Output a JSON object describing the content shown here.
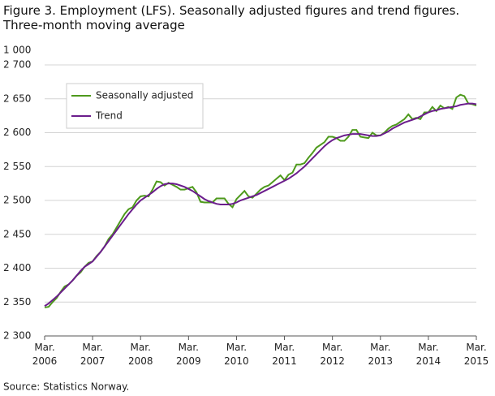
{
  "chart_data": {
    "type": "line",
    "title": "Figure 3. Employment (LFS). Seasonally adjusted figures and trend figures.",
    "subtitle": "Three-month moving average",
    "unit_label": "1 000",
    "source": "Source: Statistics Norway.",
    "categories": [
      "Mar. 2006",
      null,
      null,
      null,
      null,
      null,
      null,
      null,
      null,
      null,
      null,
      null,
      "Mar. 2007",
      null,
      null,
      null,
      null,
      null,
      null,
      null,
      null,
      null,
      null,
      null,
      "Mar. 2008",
      null,
      null,
      null,
      null,
      null,
      null,
      null,
      null,
      null,
      null,
      null,
      "Mar. 2009",
      null,
      null,
      null,
      null,
      null,
      null,
      null,
      null,
      null,
      null,
      null,
      "Mar. 2010",
      null,
      null,
      null,
      null,
      null,
      null,
      null,
      null,
      null,
      null,
      null,
      "Mar. 2011",
      null,
      null,
      null,
      null,
      null,
      null,
      null,
      null,
      null,
      null,
      null,
      "Mar. 2012",
      null,
      null,
      null,
      null,
      null,
      null,
      null,
      null,
      null,
      null,
      null,
      "Mar. 2013",
      null,
      null,
      null,
      null,
      null,
      null,
      null,
      null,
      null,
      null,
      null,
      "Mar. 2014",
      null,
      null,
      null,
      null,
      null,
      null,
      null,
      null,
      null,
      null,
      null,
      "Mar. 2015"
    ],
    "series": [
      {
        "name": "Seasonally adjusted",
        "color": "#4e9a1c",
        "values": [
          2342,
          2343,
          2350,
          2356,
          2365,
          2373,
          2376,
          2382,
          2389,
          2394,
          2402,
          2408,
          2410,
          2418,
          2424,
          2432,
          2443,
          2450,
          2460,
          2470,
          2480,
          2487,
          2490,
          2500,
          2506,
          2507,
          2506,
          2516,
          2528,
          2527,
          2522,
          2526,
          2523,
          2520,
          2516,
          2516,
          2518,
          2520,
          2512,
          2498,
          2497,
          2497,
          2497,
          2503,
          2503,
          2503,
          2495,
          2490,
          2502,
          2508,
          2514,
          2506,
          2504,
          2510,
          2516,
          2520,
          2522,
          2527,
          2532,
          2537,
          2530,
          2538,
          2541,
          2553,
          2553,
          2555,
          2563,
          2570,
          2578,
          2582,
          2586,
          2594,
          2594,
          2592,
          2588,
          2588,
          2594,
          2604,
          2604,
          2594,
          2593,
          2592,
          2600,
          2596,
          2596,
          2600,
          2606,
          2610,
          2612,
          2616,
          2620,
          2627,
          2620,
          2622,
          2620,
          2630,
          2630,
          2638,
          2632,
          2640,
          2636,
          2638,
          2635,
          2652,
          2656,
          2654,
          2643,
          2642,
          2640
        ]
      },
      {
        "name": "Trend",
        "color": "#6b1d8c",
        "values": [
          2344,
          2348,
          2353,
          2358,
          2364,
          2370,
          2376,
          2382,
          2389,
          2396,
          2402,
          2406,
          2410,
          2417,
          2424,
          2432,
          2440,
          2448,
          2456,
          2464,
          2472,
          2480,
          2487,
          2494,
          2500,
          2504,
          2508,
          2512,
          2517,
          2521,
          2524,
          2525,
          2525,
          2524,
          2522,
          2520,
          2517,
          2514,
          2510,
          2506,
          2502,
          2499,
          2497,
          2495,
          2494,
          2494,
          2494,
          2495,
          2497,
          2500,
          2502,
          2504,
          2506,
          2508,
          2511,
          2514,
          2517,
          2520,
          2523,
          2526,
          2529,
          2532,
          2536,
          2540,
          2545,
          2550,
          2556,
          2562,
          2568,
          2574,
          2580,
          2585,
          2589,
          2592,
          2594,
          2596,
          2597,
          2598,
          2598,
          2598,
          2597,
          2596,
          2595,
          2595,
          2596,
          2599,
          2602,
          2606,
          2609,
          2612,
          2615,
          2617,
          2619,
          2621,
          2624,
          2627,
          2630,
          2632,
          2633,
          2635,
          2636,
          2637,
          2638,
          2639,
          2641,
          2642,
          2643,
          2643,
          2642
        ]
      }
    ],
    "ylim": [
      2300,
      2700
    ],
    "yticks": [
      {
        "value": 2300,
        "label": "2 300"
      },
      {
        "value": 2350,
        "label": "2 350"
      },
      {
        "value": 2400,
        "label": "2 400"
      },
      {
        "value": 2450,
        "label": "2 450"
      },
      {
        "value": 2500,
        "label": "2 500"
      },
      {
        "value": 2550,
        "label": "2 550"
      },
      {
        "value": 2600,
        "label": "2 600"
      },
      {
        "value": 2650,
        "label": "2 650"
      },
      {
        "value": 2700,
        "label": "2 700"
      }
    ],
    "grid": true,
    "legend": "upper left"
  }
}
